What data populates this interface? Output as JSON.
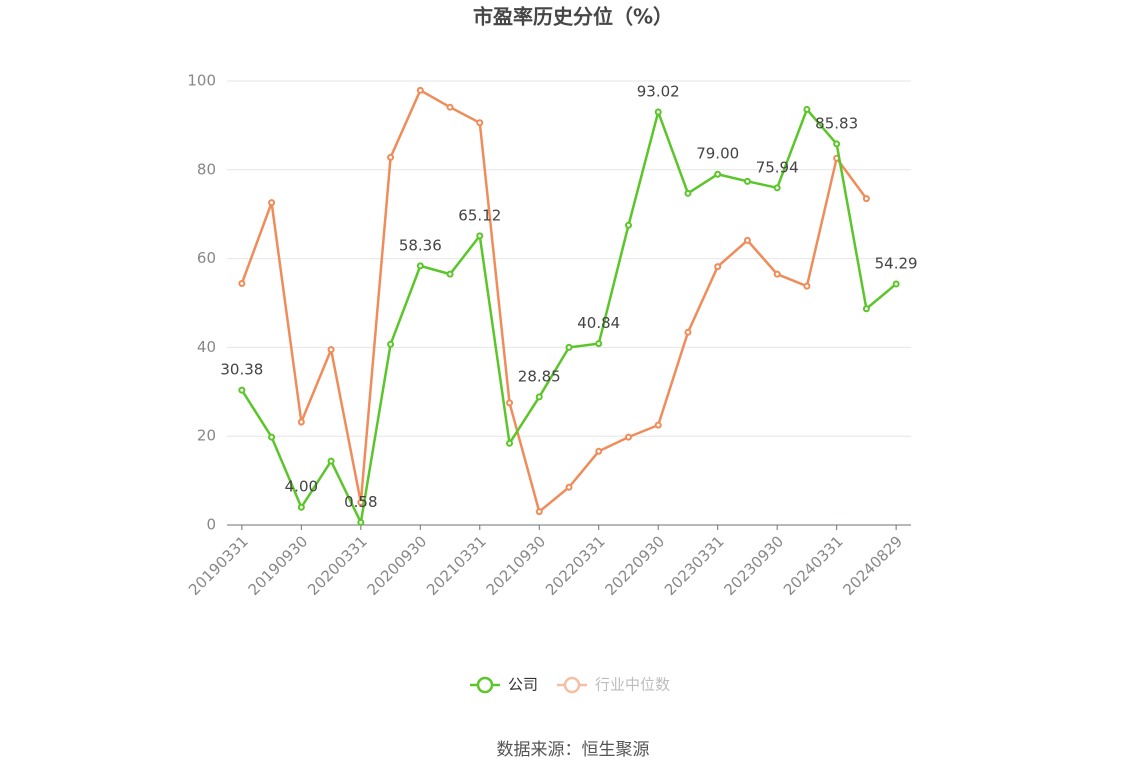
{
  "chart_data": {
    "type": "line",
    "title": "市盈率历史分位（%）",
    "categories": [
      "20190331",
      null,
      "20190930",
      null,
      "20200331",
      null,
      "20200930",
      null,
      "20210331",
      null,
      "20210930",
      null,
      "20220331",
      null,
      "20220930",
      null,
      "20230331",
      null,
      "20230930",
      null,
      "20240331",
      null,
      "20240829"
    ],
    "series": [
      {
        "name": "公司",
        "color": "#5ac629",
        "values": [
          30.38,
          19.8,
          4.0,
          14.4,
          0.58,
          40.7,
          58.36,
          56.5,
          65.12,
          18.4,
          28.85,
          40.0,
          40.84,
          67.5,
          93.02,
          74.7,
          79.0,
          77.4,
          75.94,
          93.6,
          85.83,
          48.7,
          54.29
        ],
        "value_labels": [
          "30.38",
          null,
          "4.00",
          null,
          "0.58",
          null,
          "58.36",
          null,
          "65.12",
          null,
          "28.85",
          null,
          "40.84",
          null,
          "93.02",
          null,
          "79.00",
          null,
          "75.94",
          null,
          "85.83",
          null,
          "54.29"
        ]
      },
      {
        "name": "行业中位数",
        "color": "#f08c5a",
        "values": [
          54.4,
          72.6,
          23.2,
          39.5,
          5.1,
          82.8,
          97.9,
          94.1,
          90.6,
          27.5,
          3.0,
          8.5,
          16.6,
          19.8,
          22.5,
          43.4,
          58.2,
          64.1,
          56.5,
          53.8,
          82.6,
          73.5,
          null
        ]
      }
    ],
    "ylim": [
      0,
      100
    ],
    "yticks": [
      0,
      20,
      40,
      60,
      80,
      100
    ],
    "grid": true,
    "legend": "bottom",
    "source": "数据来源：恒生聚源"
  }
}
